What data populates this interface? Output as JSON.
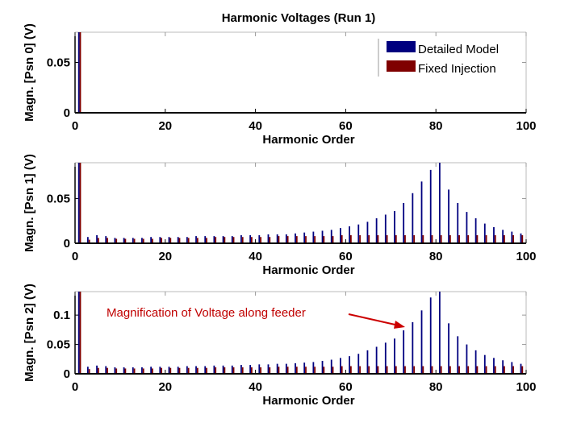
{
  "chart_data": {
    "type": "bar",
    "title": "Harmonic Voltages (Run 1)",
    "series_names": [
      "Detailed Model",
      "Fixed Injection"
    ],
    "colors": {
      "detailed": "#00007f",
      "fixed": "#7f0000",
      "annotation": "#cc0000"
    },
    "annotation": "Magnification of Voltage along feeder",
    "panels": [
      {
        "ylabel": "Magn. [Psn 0] (V)",
        "xlabel": "Harmonic Order",
        "xlim": [
          0,
          100
        ],
        "ylim": [
          0,
          0.08
        ],
        "xticks": [
          0,
          20,
          40,
          60,
          80,
          100
        ],
        "xtick_labels": [
          "0",
          "20",
          "40",
          "60",
          "80",
          "100"
        ],
        "yticks": [
          0,
          0.05
        ],
        "ytick_labels": [
          "0",
          "0.05"
        ],
        "x": [
          1,
          5,
          7
        ],
        "detailed": [
          0.3,
          0.0005,
          0.0005
        ],
        "fixed": [
          0.3,
          0.0005,
          0.0005
        ]
      },
      {
        "ylabel": "Magn. [Psn 1] (V)",
        "xlabel": "Harmonic Order",
        "xlim": [
          0,
          100
        ],
        "ylim": [
          0,
          0.09
        ],
        "xticks": [
          0,
          20,
          40,
          60,
          80,
          100
        ],
        "xtick_labels": [
          "0",
          "20",
          "40",
          "60",
          "80",
          "100"
        ],
        "yticks": [
          0,
          0.05
        ],
        "ytick_labels": [
          "0",
          "0.05"
        ],
        "x": [
          1,
          3,
          5,
          7,
          9,
          11,
          13,
          15,
          17,
          19,
          21,
          23,
          25,
          27,
          29,
          31,
          33,
          35,
          37,
          39,
          41,
          43,
          45,
          47,
          49,
          51,
          53,
          55,
          57,
          59,
          61,
          63,
          65,
          67,
          69,
          71,
          73,
          75,
          77,
          79,
          81,
          83,
          85,
          87,
          89,
          91,
          93,
          95,
          97,
          99
        ],
        "detailed": [
          0.3,
          0.007,
          0.009,
          0.008,
          0.006,
          0.006,
          0.006,
          0.006,
          0.007,
          0.007,
          0.007,
          0.007,
          0.007,
          0.008,
          0.008,
          0.008,
          0.008,
          0.008,
          0.009,
          0.009,
          0.009,
          0.01,
          0.01,
          0.01,
          0.011,
          0.012,
          0.013,
          0.014,
          0.015,
          0.017,
          0.019,
          0.021,
          0.024,
          0.028,
          0.032,
          0.036,
          0.045,
          0.056,
          0.069,
          0.082,
          0.09,
          0.06,
          0.045,
          0.035,
          0.028,
          0.022,
          0.018,
          0.015,
          0.013,
          0.011
        ],
        "fixed": [
          0.3,
          0.004,
          0.006,
          0.006,
          0.005,
          0.005,
          0.005,
          0.005,
          0.005,
          0.006,
          0.006,
          0.006,
          0.006,
          0.006,
          0.006,
          0.007,
          0.007,
          0.007,
          0.007,
          0.007,
          0.007,
          0.007,
          0.008,
          0.008,
          0.008,
          0.008,
          0.008,
          0.008,
          0.008,
          0.009,
          0.009,
          0.009,
          0.009,
          0.009,
          0.009,
          0.009,
          0.009,
          0.009,
          0.009,
          0.009,
          0.009,
          0.009,
          0.009,
          0.009,
          0.009,
          0.009,
          0.009,
          0.009,
          0.009,
          0.009
        ]
      },
      {
        "ylabel": "Magn. [Psn 2] (V)",
        "xlabel": "Harmonic Order",
        "xlim": [
          0,
          100
        ],
        "ylim": [
          0,
          0.14
        ],
        "xticks": [
          0,
          20,
          40,
          60,
          80,
          100
        ],
        "xtick_labels": [
          "0",
          "20",
          "40",
          "60",
          "80",
          "100"
        ],
        "yticks": [
          0,
          0.05,
          0.1
        ],
        "ytick_labels": [
          "0",
          "0.05",
          "0.1"
        ],
        "x": [
          1,
          3,
          5,
          7,
          9,
          11,
          13,
          15,
          17,
          19,
          21,
          23,
          25,
          27,
          29,
          31,
          33,
          35,
          37,
          39,
          41,
          43,
          45,
          47,
          49,
          51,
          53,
          55,
          57,
          59,
          61,
          63,
          65,
          67,
          69,
          71,
          73,
          75,
          77,
          79,
          81,
          83,
          85,
          87,
          89,
          91,
          93,
          95,
          97,
          99
        ],
        "detailed": [
          0.4,
          0.012,
          0.014,
          0.013,
          0.011,
          0.011,
          0.011,
          0.011,
          0.012,
          0.012,
          0.012,
          0.012,
          0.013,
          0.013,
          0.013,
          0.014,
          0.014,
          0.014,
          0.015,
          0.015,
          0.016,
          0.016,
          0.017,
          0.017,
          0.018,
          0.019,
          0.02,
          0.022,
          0.024,
          0.027,
          0.03,
          0.034,
          0.04,
          0.046,
          0.053,
          0.06,
          0.074,
          0.088,
          0.108,
          0.13,
          0.14,
          0.086,
          0.064,
          0.05,
          0.04,
          0.032,
          0.027,
          0.023,
          0.02,
          0.017
        ],
        "fixed": [
          0.4,
          0.008,
          0.01,
          0.01,
          0.009,
          0.009,
          0.009,
          0.009,
          0.009,
          0.01,
          0.01,
          0.01,
          0.01,
          0.01,
          0.01,
          0.011,
          0.011,
          0.011,
          0.011,
          0.011,
          0.011,
          0.011,
          0.012,
          0.012,
          0.012,
          0.012,
          0.012,
          0.012,
          0.012,
          0.013,
          0.013,
          0.013,
          0.013,
          0.013,
          0.013,
          0.013,
          0.013,
          0.013,
          0.013,
          0.013,
          0.013,
          0.013,
          0.013,
          0.013,
          0.013,
          0.013,
          0.013,
          0.013,
          0.013,
          0.013
        ]
      }
    ]
  }
}
